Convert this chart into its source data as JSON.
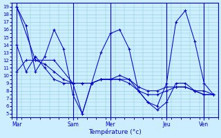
{
  "title": "",
  "xlabel": "Température (°c)",
  "bg_color": "#cceeff",
  "line_color": "#0000cc",
  "ylim": [
    4.5,
    19.5
  ],
  "yticks": [
    5,
    6,
    7,
    8,
    9,
    10,
    11,
    12,
    13,
    14,
    15,
    16,
    17,
    18,
    19
  ],
  "series": [
    {
      "x": [
        0,
        1,
        2,
        3,
        4,
        5,
        6,
        7,
        8,
        9,
        10,
        11,
        12,
        13,
        14,
        15,
        16,
        17,
        18,
        19,
        20,
        21
      ],
      "y": [
        19,
        16.5,
        10.5,
        12.5,
        16.0,
        13.5,
        7.5,
        5.0,
        9.0,
        13.0,
        15.5,
        16.0,
        13.5,
        8.0,
        6.5,
        6.0,
        9.0,
        17.0,
        18.5,
        14.5,
        9.0,
        7.5
      ]
    },
    {
      "x": [
        0,
        2,
        4,
        6,
        7,
        8,
        9,
        10,
        11,
        12,
        13,
        14,
        15,
        16,
        17,
        18,
        19,
        20,
        21
      ],
      "y": [
        19,
        12.0,
        12.0,
        9.0,
        5.0,
        9.0,
        9.5,
        9.5,
        9.5,
        9.5,
        8.0,
        6.5,
        5.5,
        6.5,
        9.0,
        9.0,
        8.0,
        7.5,
        7.5
      ]
    },
    {
      "x": [
        0,
        1,
        2,
        3,
        4,
        5,
        6,
        7,
        8,
        9,
        10,
        11,
        12,
        13,
        14,
        15,
        16,
        17,
        18,
        19,
        20,
        21
      ],
      "y": [
        10.5,
        12.0,
        12.0,
        11.5,
        10.5,
        9.5,
        9.0,
        9.0,
        9.0,
        9.5,
        9.5,
        10.0,
        9.5,
        8.5,
        8.0,
        8.0,
        8.5,
        8.5,
        8.5,
        8.0,
        8.0,
        7.5
      ]
    },
    {
      "x": [
        0,
        1,
        2,
        3,
        4,
        5,
        6,
        7,
        8,
        9,
        10,
        11,
        12,
        13,
        14,
        15,
        16,
        17,
        18,
        19,
        20,
        21
      ],
      "y": [
        14.0,
        10.5,
        12.5,
        11.0,
        9.5,
        9.0,
        9.0,
        9.0,
        9.0,
        9.5,
        9.5,
        9.5,
        9.0,
        8.0,
        7.5,
        7.5,
        8.0,
        8.5,
        8.5,
        8.0,
        7.5,
        7.5
      ]
    }
  ],
  "day_x": [
    0,
    6,
    10,
    16,
    20
  ],
  "day_labels": [
    "Mar",
    "Sam",
    "Mer",
    "Jeu",
    "Ven"
  ],
  "total_points": 22
}
